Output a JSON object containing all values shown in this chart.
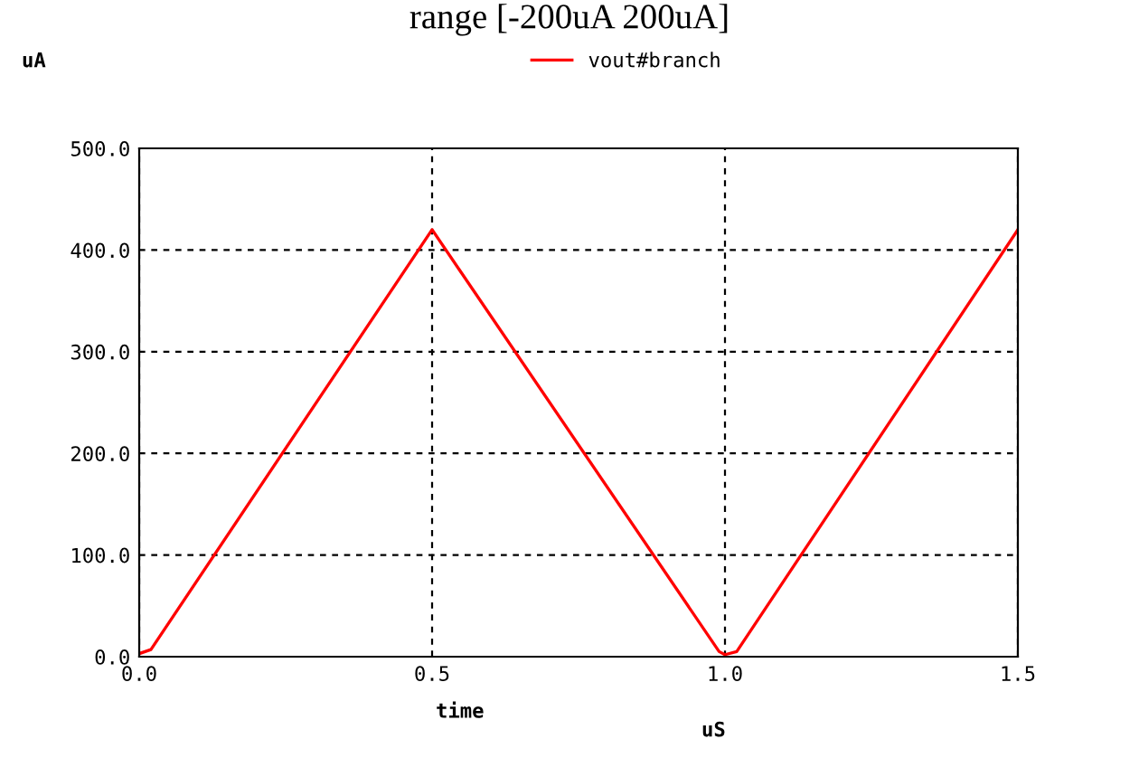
{
  "chart_data": {
    "type": "line",
    "title": "range [-200uA 200uA]",
    "ylabel": "uA",
    "xlabel": "time",
    "annotations": [
      "uS"
    ],
    "series": [
      {
        "name": "vout#branch",
        "color": "#ff0000",
        "x": [
          0,
          0.02,
          0.5,
          0.99,
          1.0,
          1.02,
          1.5
        ],
        "values": [
          3,
          7,
          420,
          5,
          2,
          5,
          420
        ]
      }
    ],
    "xlim": [
      0,
      1.5
    ],
    "xticks": [
      {
        "value": 0,
        "label": "0.0"
      },
      {
        "value": 0.5,
        "label": "0.5"
      },
      {
        "value": 1.0,
        "label": "1.0"
      },
      {
        "value": 1.5,
        "label": "1.5"
      }
    ],
    "ylim": [
      0,
      500
    ],
    "yticks": [
      {
        "value": 0,
        "label": "0.0"
      },
      {
        "value": 100,
        "label": "100.0"
      },
      {
        "value": 200,
        "label": "200.0"
      },
      {
        "value": 300,
        "label": "300.0"
      },
      {
        "value": 400,
        "label": "400.0"
      },
      {
        "value": 500,
        "label": "500.0"
      }
    ],
    "grid": true,
    "legend": "top",
    "marker": "none",
    "line_style": "solid"
  }
}
